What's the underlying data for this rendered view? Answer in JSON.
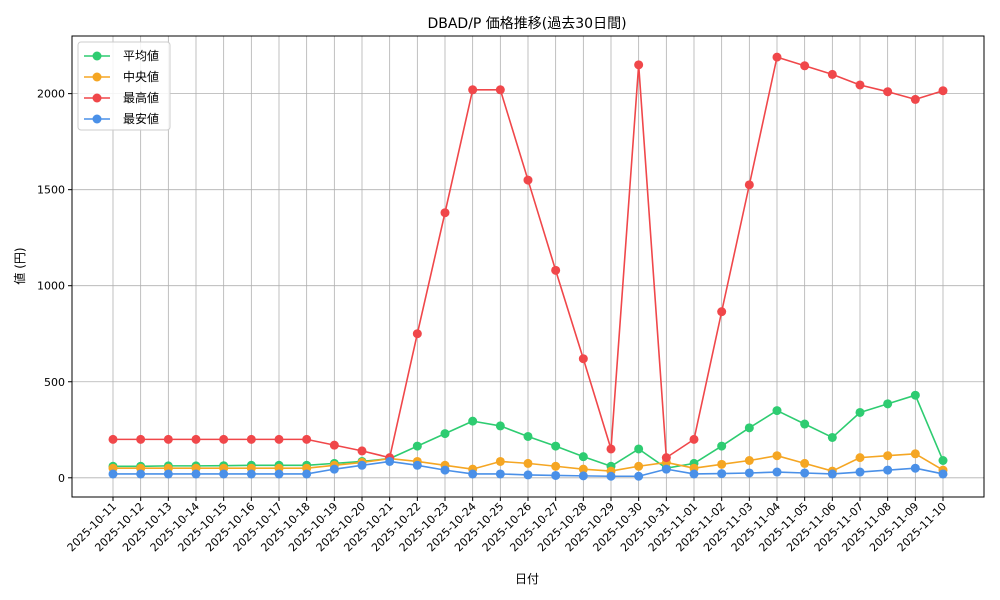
{
  "chart_data": {
    "type": "line",
    "title": "DBAD/P 価格推移(過去30日間)",
    "xlabel": "日付",
    "ylabel": "値 (円)",
    "ylim": [
      -100,
      2300
    ],
    "yticks": [
      0,
      500,
      1000,
      1500,
      2000
    ],
    "grid": true,
    "legend_position": "top-left",
    "categories": [
      "2025-10-11",
      "2025-10-12",
      "2025-10-13",
      "2025-10-14",
      "2025-10-15",
      "2025-10-16",
      "2025-10-17",
      "2025-10-18",
      "2025-10-19",
      "2025-10-20",
      "2025-10-21",
      "2025-10-22",
      "2025-10-23",
      "2025-10-24",
      "2025-10-25",
      "2025-10-26",
      "2025-10-27",
      "2025-10-28",
      "2025-10-29",
      "2025-10-30",
      "2025-10-31",
      "2025-11-01",
      "2025-11-02",
      "2025-11-03",
      "2025-11-04",
      "2025-11-05",
      "2025-11-06",
      "2025-11-07",
      "2025-11-08",
      "2025-11-09",
      "2025-11-10"
    ],
    "series": [
      {
        "name": "平均値",
        "color": "#2ecc71",
        "values": [
          60,
          60,
          62,
          62,
          63,
          65,
          65,
          65,
          75,
          85,
          100,
          165,
          230,
          295,
          270,
          215,
          165,
          110,
          60,
          150,
          50,
          75,
          165,
          260,
          350,
          280,
          210,
          340,
          385,
          430,
          90
        ]
      },
      {
        "name": "中央値",
        "color": "#f5a623",
        "values": [
          50,
          50,
          50,
          50,
          50,
          50,
          50,
          50,
          65,
          80,
          100,
          85,
          65,
          45,
          85,
          75,
          60,
          45,
          35,
          60,
          80,
          50,
          70,
          90,
          115,
          75,
          35,
          105,
          115,
          125,
          40
        ]
      },
      {
        "name": "最高値",
        "color": "#f0474a",
        "values": [
          200,
          200,
          200,
          200,
          200,
          200,
          200,
          200,
          170,
          140,
          105,
          750,
          1380,
          2020,
          2020,
          1550,
          1080,
          620,
          150,
          2150,
          105,
          200,
          865,
          1525,
          2190,
          2145,
          2100,
          2045,
          2010,
          1970,
          2015
        ]
      },
      {
        "name": "最安値",
        "color": "#4a90e8",
        "values": [
          20,
          20,
          20,
          20,
          20,
          20,
          20,
          20,
          45,
          65,
          85,
          65,
          40,
          20,
          20,
          15,
          12,
          10,
          8,
          8,
          45,
          20,
          22,
          25,
          30,
          25,
          20,
          30,
          40,
          50,
          20
        ]
      }
    ]
  }
}
